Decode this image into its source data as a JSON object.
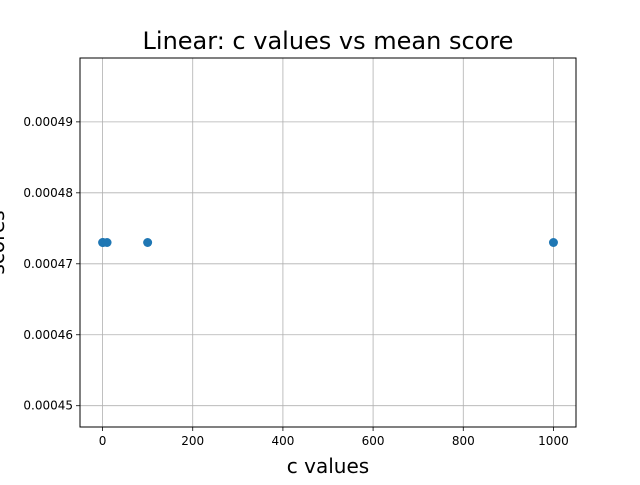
{
  "chart_data": {
    "type": "scatter",
    "title": "Linear: c values vs mean score",
    "xlabel": "c values",
    "ylabel": "scores",
    "x": [
      0.1,
      1,
      10,
      100,
      1000
    ],
    "y": [
      0.000473,
      0.000473,
      0.000473,
      0.000473,
      0.000473
    ],
    "xlim": [
      -50,
      1050
    ],
    "ylim": [
      0.000447,
      0.000499
    ],
    "x_ticks": [
      0,
      200,
      400,
      600,
      800,
      1000
    ],
    "x_tick_labels": [
      "0",
      "200",
      "400",
      "600",
      "800",
      "1000"
    ],
    "y_ticks": [
      0.00045,
      0.00046,
      0.00047,
      0.00048,
      0.00049
    ],
    "y_tick_labels": [
      "0.00045",
      "0.00046",
      "0.00047",
      "0.00048",
      "0.00049"
    ],
    "grid": true,
    "marker_color": "#1f77b4",
    "grid_color": "#b0b0b0"
  }
}
